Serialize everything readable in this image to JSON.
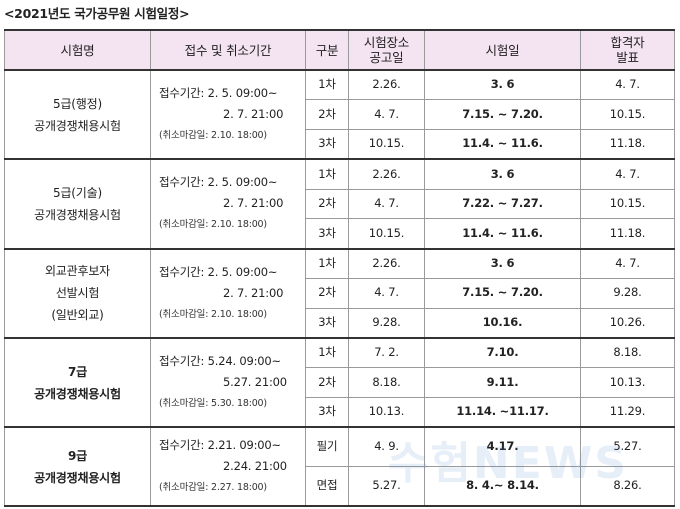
{
  "title": "<2021년도 국가공무원 시험일정>",
  "headers": [
    "시험명",
    "접수 및 취소기간",
    "구분",
    "시험장소\n공고일",
    "시험일",
    "합격자\n발표"
  ],
  "groups": [
    {
      "name_lines": [
        "5급(행정)",
        "공개경쟁채용시험"
      ],
      "name_bold": [
        false,
        false
      ],
      "period": {
        "start": "접수기간: 2. 5. 09:00~",
        "end": "2. 7. 21:00",
        "cancel": "(취소마감일: 2.10. 18:00)"
      },
      "rows": [
        {
          "stage": "1차",
          "notice": "2.26.",
          "exam": "3. 6",
          "result": "4. 7."
        },
        {
          "stage": "2차",
          "notice": "4. 7.",
          "exam": "7.15. ~ 7.20.",
          "result": "10.15."
        },
        {
          "stage": "3차",
          "notice": "10.15.",
          "exam": "11.4. ~ 11.6.",
          "result": "11.18."
        }
      ]
    },
    {
      "name_lines": [
        "5급(기술)",
        "공개경쟁채용시험"
      ],
      "name_bold": [
        false,
        false
      ],
      "period": {
        "start": "접수기간: 2. 5. 09:00~",
        "end": "2. 7. 21:00",
        "cancel": "(취소마감일: 2.10. 18:00)"
      },
      "rows": [
        {
          "stage": "1차",
          "notice": "2.26.",
          "exam": "3. 6",
          "result": "4. 7."
        },
        {
          "stage": "2차",
          "notice": "4. 7.",
          "exam": "7.22. ~ 7.27.",
          "result": "10.15."
        },
        {
          "stage": "3차",
          "notice": "10.15.",
          "exam": "11.4. ~ 11.6.",
          "result": "11.18."
        }
      ]
    },
    {
      "name_lines": [
        "외교관후보자",
        "선발시험",
        "(일반외교)"
      ],
      "name_bold": [
        false,
        false,
        false
      ],
      "period": {
        "start": "접수기간: 2. 5. 09:00~",
        "end": "2. 7. 21:00",
        "cancel": "(취소마감일: 2.10. 18:00)"
      },
      "rows": [
        {
          "stage": "1차",
          "notice": "2.26.",
          "exam": "3. 6",
          "result": "4. 7."
        },
        {
          "stage": "2차",
          "notice": "4. 7.",
          "exam": "7.15. ~ 7.20.",
          "result": "9.28."
        },
        {
          "stage": "3차",
          "notice": "9.28.",
          "exam": "10.16.",
          "result": "10.26."
        }
      ]
    },
    {
      "name_lines": [
        "7급",
        "공개경쟁채용시험"
      ],
      "name_bold": [
        true,
        true
      ],
      "period": {
        "start": "접수기간: 5.24. 09:00~",
        "end": "5.27. 21:00",
        "cancel": "(취소마감일: 5.30. 18:00)"
      },
      "rows": [
        {
          "stage": "1차",
          "notice": "7. 2.",
          "exam": "7.10.",
          "result": "8.18."
        },
        {
          "stage": "2차",
          "notice": "8.18.",
          "exam": "9.11.",
          "result": "10.13."
        },
        {
          "stage": "3차",
          "notice": "10.13.",
          "exam": "11.14. ~11.17.",
          "result": "11.29."
        }
      ]
    },
    {
      "name_lines": [
        "9급",
        "공개경쟁채용시험"
      ],
      "name_bold": [
        true,
        true
      ],
      "period": {
        "start": "접수기간: 2.21. 09:00~",
        "end": "2.24. 21:00",
        "cancel": "(취소마감일: 2.27. 18:00)"
      },
      "rows": [
        {
          "stage": "필기",
          "notice": "4. 9.",
          "exam": "4.17.",
          "result": "5.27."
        },
        {
          "stage": "면접",
          "notice": "5.27.",
          "exam": "8. 4.~ 8.14.",
          "result": "8.26."
        }
      ]
    }
  ],
  "watermark": "수험NEWS"
}
